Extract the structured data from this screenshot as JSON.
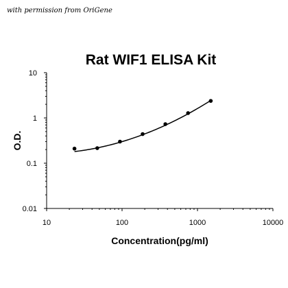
{
  "credit": "with permission from OriGene",
  "chart_data": {
    "type": "scatter",
    "title": "Rat WIF1 ELISA Kit",
    "xlabel": "Concentration(pg/ml)",
    "ylabel": "O.D.",
    "xscale": "log",
    "yscale": "log",
    "xlim": [
      10,
      10000
    ],
    "ylim": [
      0.01,
      10
    ],
    "x_ticks": [
      "10",
      "100",
      "1000",
      "10000"
    ],
    "y_ticks": [
      "10",
      "1",
      "0.1",
      "0.01"
    ],
    "grid": false,
    "legend": "none",
    "series": [
      {
        "x": [
          23.4,
          46.9,
          93.8,
          187.5,
          375,
          750,
          1500
        ],
        "y": [
          0.21,
          0.215,
          0.3,
          0.44,
          0.73,
          1.28,
          2.38
        ]
      }
    ],
    "fit_curve": {
      "type": "log-log quadratic",
      "x": [
        23.4,
        46.9,
        93.8,
        187.5,
        375,
        750,
        1500
      ],
      "y": [
        0.185,
        0.215,
        0.28,
        0.42,
        0.72,
        1.27,
        2.36
      ]
    },
    "colors": {
      "points": "#000000",
      "curve": "#000000",
      "axis": "#000000"
    }
  }
}
